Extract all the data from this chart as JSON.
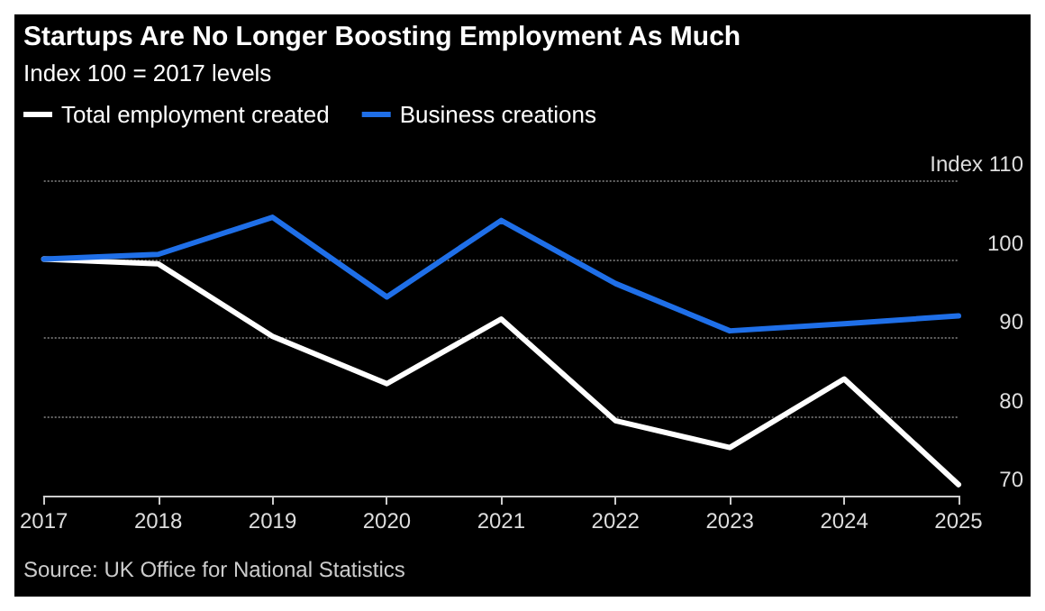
{
  "chart_data": {
    "type": "line",
    "title": "Startups Are No Longer Boosting Employment As Much",
    "subtitle": "Index 100 = 2017 levels",
    "categories": [
      "2017",
      "2018",
      "2019",
      "2020",
      "2021",
      "2022",
      "2023",
      "2024",
      "2025"
    ],
    "series": [
      {
        "name": "Total employment created",
        "color": "#ffffff",
        "values": [
          100,
          99.4,
          90.2,
          84.2,
          92.4,
          79.5,
          76.1,
          84.8,
          71.4
        ]
      },
      {
        "name": "Business creations",
        "color": "#1f6fe8",
        "values": [
          100,
          100.6,
          105.3,
          95.2,
          104.9,
          96.9,
          90.9,
          91.8,
          92.8
        ]
      }
    ],
    "ylim": [
      70,
      110
    ],
    "yticks": [
      70,
      80,
      90,
      100,
      {
        "value": 110,
        "label": "Index 110"
      }
    ],
    "grid": "y",
    "legend": "top left",
    "marker": "none",
    "line_style": "solid",
    "annotations": [
      "Source: UK Office for National Statistics"
    ]
  }
}
